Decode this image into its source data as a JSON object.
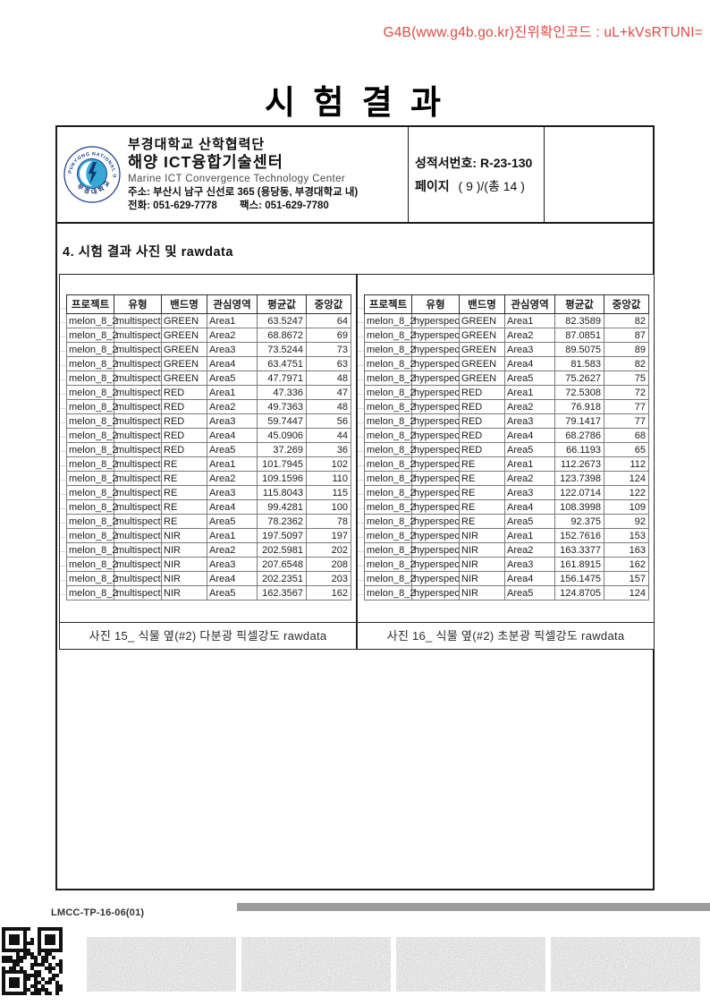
{
  "verification_code": "G4B(www.g4b.go.kr)진위확인코드 : uL+kVsRTUNI=",
  "title": "시 험 결 과",
  "header": {
    "org": {
      "name_kr": "부경대학교 산학협력단",
      "center_kr": "해양 ICT융합기술센터",
      "center_en": "Marine ICT Convergence Technology Center",
      "address": "주소: 부산시 남구 신선로 365 (용당동, 부경대학교 내)",
      "phone": "전화: 051-629-7778",
      "fax": "팩스:  051-629-7780",
      "logo_text_top": "PUKYONG NATIONAL UNIVERSITY",
      "logo_text_bottom": "부경대학교"
    },
    "report": {
      "number_label": "성적서번호:",
      "number_value": "R-23-130",
      "page_label": "페이지",
      "page_value": "( 9 )/(총 14 )"
    }
  },
  "section_title": "4. 시험 결과 사진 및 rawdata",
  "columns": [
    "프로젝트",
    "유형",
    "밴드명",
    "관심영역",
    "평균값",
    "중앙값"
  ],
  "table_left": {
    "caption": "사진 15_ 식물 옆(#2) 다분광 픽셀강도 rawdata",
    "rows": [
      [
        "melon_8_2",
        "multispect",
        "GREEN",
        "Area1",
        "63.5247",
        "64"
      ],
      [
        "melon_8_2",
        "multispect",
        "GREEN",
        "Area2",
        "68.8672",
        "69"
      ],
      [
        "melon_8_2",
        "multispect",
        "GREEN",
        "Area3",
        "73.5244",
        "73"
      ],
      [
        "melon_8_2",
        "multispect",
        "GREEN",
        "Area4",
        "63.4751",
        "63"
      ],
      [
        "melon_8_2",
        "multispect",
        "GREEN",
        "Area5",
        "47.7971",
        "48"
      ],
      [
        "melon_8_2",
        "multispect",
        "RED",
        "Area1",
        "47.336",
        "47"
      ],
      [
        "melon_8_2",
        "multispect",
        "RED",
        "Area2",
        "49.7363",
        "48"
      ],
      [
        "melon_8_2",
        "multispect",
        "RED",
        "Area3",
        "59.7447",
        "56"
      ],
      [
        "melon_8_2",
        "multispect",
        "RED",
        "Area4",
        "45.0906",
        "44"
      ],
      [
        "melon_8_2",
        "multispect",
        "RED",
        "Area5",
        "37.269",
        "36"
      ],
      [
        "melon_8_2",
        "multispect",
        "RE",
        "Area1",
        "101.7945",
        "102"
      ],
      [
        "melon_8_2",
        "multispect",
        "RE",
        "Area2",
        "109.1596",
        "110"
      ],
      [
        "melon_8_2",
        "multispect",
        "RE",
        "Area3",
        "115.8043",
        "115"
      ],
      [
        "melon_8_2",
        "multispect",
        "RE",
        "Area4",
        "99.4281",
        "100"
      ],
      [
        "melon_8_2",
        "multispect",
        "RE",
        "Area5",
        "78.2362",
        "78"
      ],
      [
        "melon_8_2",
        "multispect",
        "NIR",
        "Area1",
        "197.5097",
        "197"
      ],
      [
        "melon_8_2",
        "multispect",
        "NIR",
        "Area2",
        "202.5981",
        "202"
      ],
      [
        "melon_8_2",
        "multispect",
        "NIR",
        "Area3",
        "207.6548",
        "208"
      ],
      [
        "melon_8_2",
        "multispect",
        "NIR",
        "Area4",
        "202.2351",
        "203"
      ],
      [
        "melon_8_2",
        "multispect",
        "NIR",
        "Area5",
        "162.3567",
        "162"
      ]
    ]
  },
  "table_right": {
    "caption": "사진 16_ 식물 옆(#2) 초분광 픽셀강도 rawdata",
    "rows": [
      [
        "melon_8_2",
        "hyperspec",
        "GREEN",
        "Area1",
        "82.3589",
        "82"
      ],
      [
        "melon_8_2",
        "hyperspec",
        "GREEN",
        "Area2",
        "87.0851",
        "87"
      ],
      [
        "melon_8_2",
        "hyperspec",
        "GREEN",
        "Area3",
        "89.5075",
        "89"
      ],
      [
        "melon_8_2",
        "hyperspec",
        "GREEN",
        "Area4",
        "81.583",
        "82"
      ],
      [
        "melon_8_2",
        "hyperspec",
        "GREEN",
        "Area5",
        "75.2627",
        "75"
      ],
      [
        "melon_8_2",
        "hyperspec",
        "RED",
        "Area1",
        "72.5308",
        "72"
      ],
      [
        "melon_8_2",
        "hyperspec",
        "RED",
        "Area2",
        "76.918",
        "77"
      ],
      [
        "melon_8_2",
        "hyperspec",
        "RED",
        "Area3",
        "79.1417",
        "77"
      ],
      [
        "melon_8_2",
        "hyperspec",
        "RED",
        "Area4",
        "68.2786",
        "68"
      ],
      [
        "melon_8_2",
        "hyperspec",
        "RED",
        "Area5",
        "66.1193",
        "65"
      ],
      [
        "melon_8_2",
        "hyperspec",
        "RE",
        "Area1",
        "112.2673",
        "112"
      ],
      [
        "melon_8_2",
        "hyperspec",
        "RE",
        "Area2",
        "123.7398",
        "124"
      ],
      [
        "melon_8_2",
        "hyperspec",
        "RE",
        "Area3",
        "122.0714",
        "122"
      ],
      [
        "melon_8_2",
        "hyperspec",
        "RE",
        "Area4",
        "108.3998",
        "109"
      ],
      [
        "melon_8_2",
        "hyperspec",
        "RE",
        "Area5",
        "92.375",
        "92"
      ],
      [
        "melon_8_2",
        "hyperspec",
        "NIR",
        "Area1",
        "152.7616",
        "153"
      ],
      [
        "melon_8_2",
        "hyperspec",
        "NIR",
        "Area2",
        "163.3377",
        "163"
      ],
      [
        "melon_8_2",
        "hyperspec",
        "NIR",
        "Area3",
        "161.8915",
        "162"
      ],
      [
        "melon_8_2",
        "hyperspec",
        "NIR",
        "Area4",
        "156.1475",
        "157"
      ],
      [
        "melon_8_2",
        "hyperspec",
        "NIR",
        "Area5",
        "124.8705",
        "124"
      ]
    ]
  },
  "footer": {
    "doc_code": "LMCC-TP-16-06(01)"
  },
  "colors": {
    "verification_red": "#e14b44",
    "logo_ring_blue": "#1b3e8f",
    "logo_disc_blue": "#35a8d8",
    "logo_navy": "#11356e",
    "gray_bar": "#9c9c9c"
  }
}
